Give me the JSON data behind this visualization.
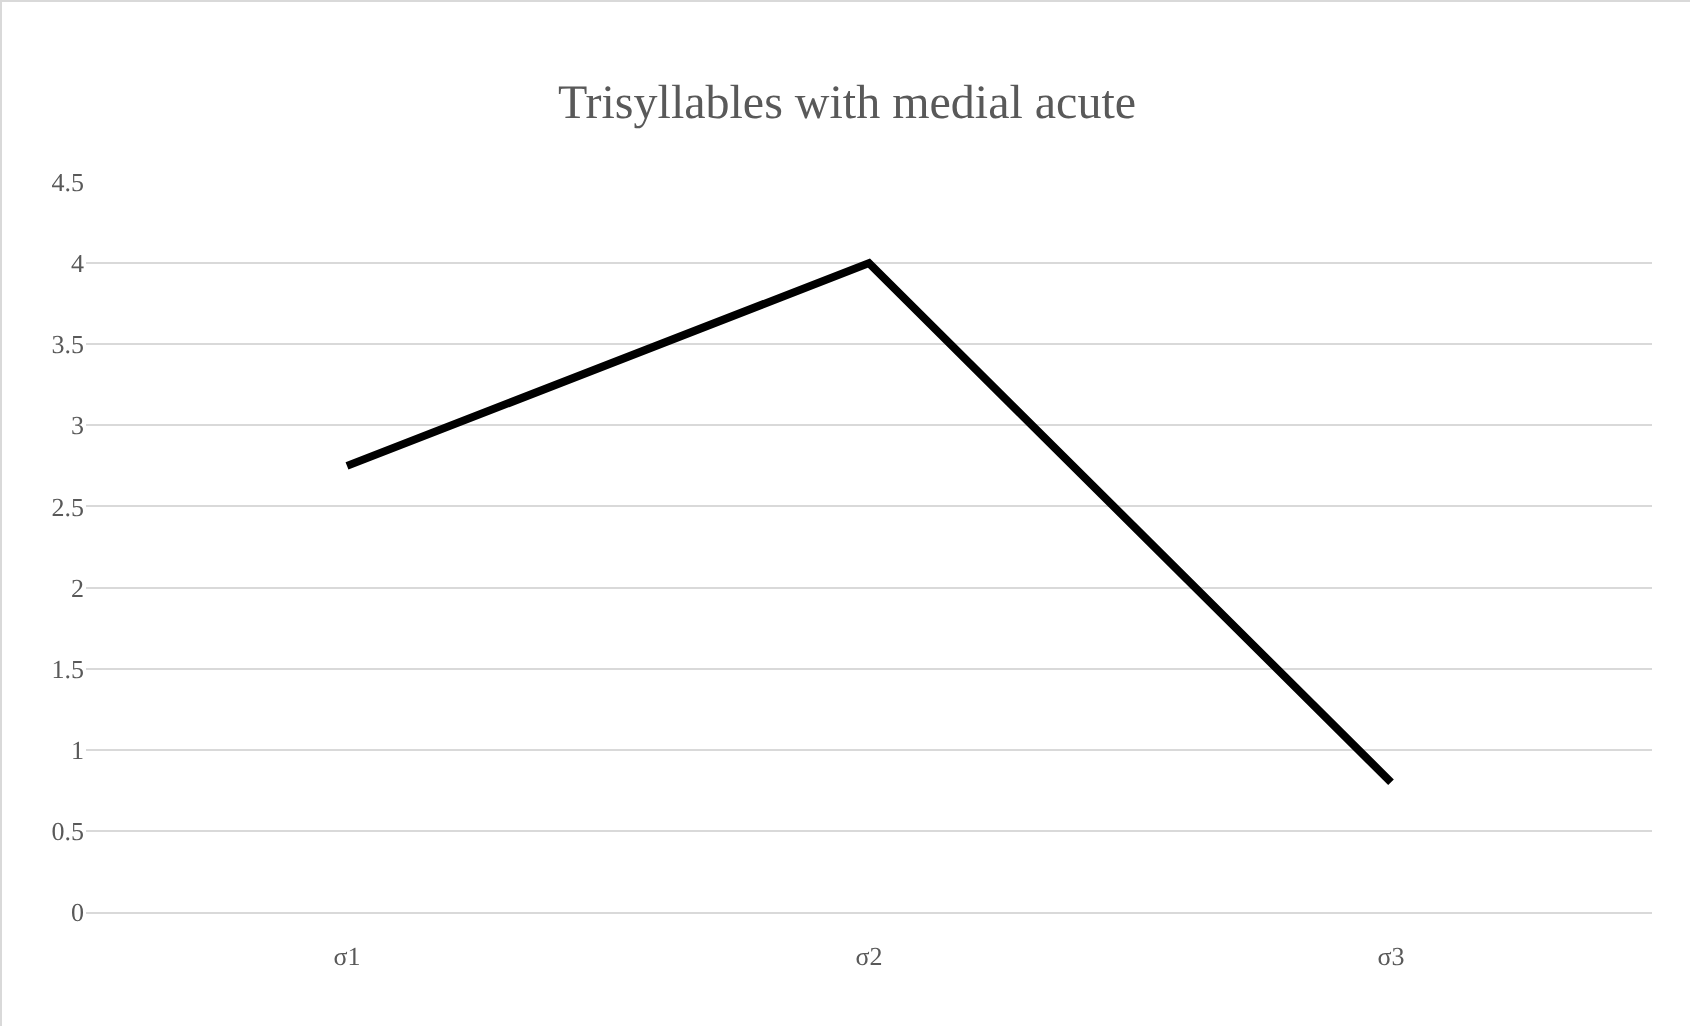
{
  "chart_data": {
    "type": "line",
    "title": "Trisyllables with medial acute",
    "categories": [
      "σ1",
      "σ2",
      "σ3"
    ],
    "series": [
      {
        "color": "#000000",
        "values": [
          2.75,
          4,
          0.8
        ]
      }
    ],
    "ylim": [
      0,
      4.5
    ],
    "yticks": [
      0,
      0.5,
      1,
      1.5,
      2,
      2.5,
      3,
      3.5,
      4,
      4.5
    ],
    "grid": "y",
    "marker": "none",
    "line_style": "solid"
  }
}
